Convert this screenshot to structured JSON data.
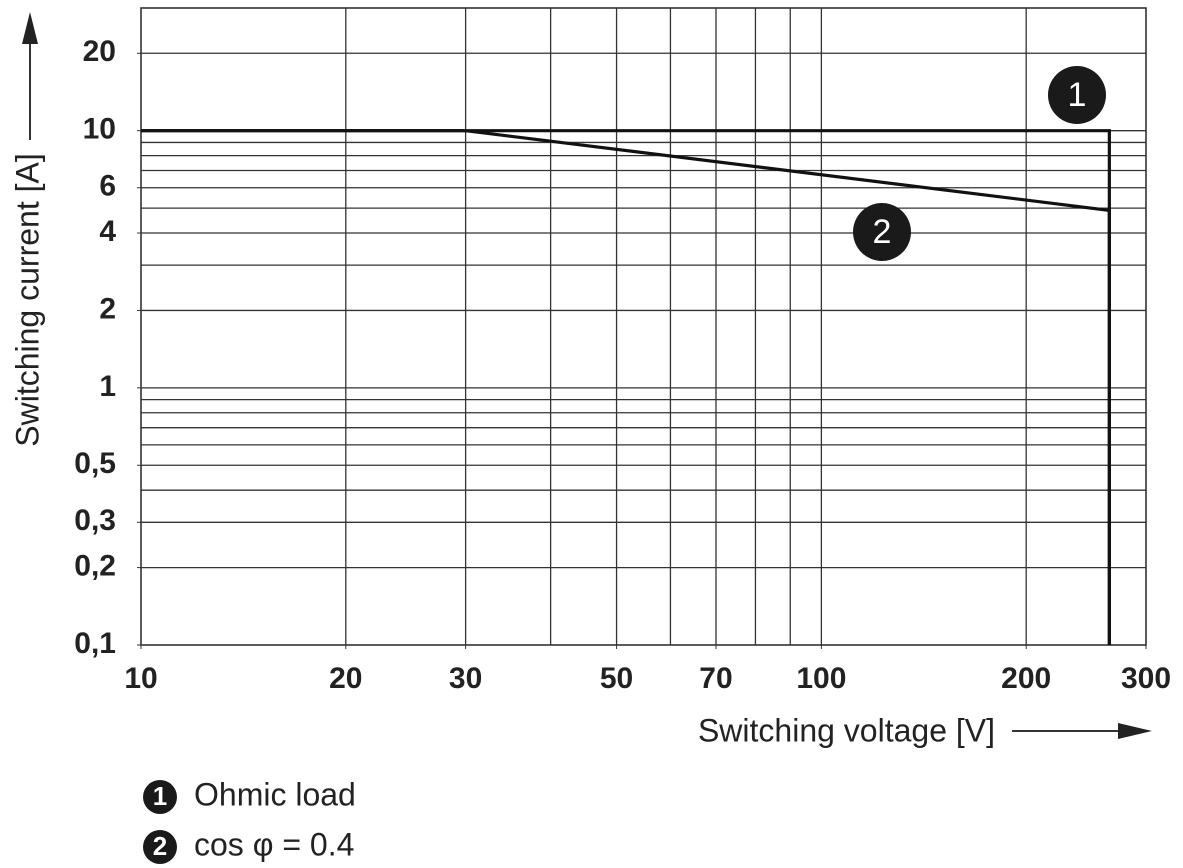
{
  "chart_data": {
    "type": "line",
    "log_x": true,
    "log_y": true,
    "grid": true,
    "x_label": "Switching voltage [V]",
    "y_label": "Switching current [A]",
    "xlim": [
      10,
      300
    ],
    "ylim": [
      0.1,
      30
    ],
    "xticks": [
      10,
      20,
      30,
      50,
      70,
      100,
      200,
      300
    ],
    "yticks": [
      {
        "value": 0.1,
        "label": "0,1"
      },
      {
        "value": 0.2,
        "label": "0,2"
      },
      {
        "value": 0.3,
        "label": "0,3"
      },
      {
        "value": 0.5,
        "label": "0,5"
      },
      1,
      2,
      4,
      6,
      10,
      20
    ],
    "series": [
      {
        "name": "Ohmic load",
        "marker": "1",
        "color": "#111111",
        "x": [
          10,
          265,
          265
        ],
        "values": [
          10,
          10,
          0.1
        ]
      },
      {
        "name": "cos φ = 0.4",
        "marker": "2",
        "color": "#111111",
        "x": [
          10,
          30,
          265,
          265
        ],
        "values": [
          10,
          10,
          4.9,
          0.1
        ]
      }
    ]
  }
}
